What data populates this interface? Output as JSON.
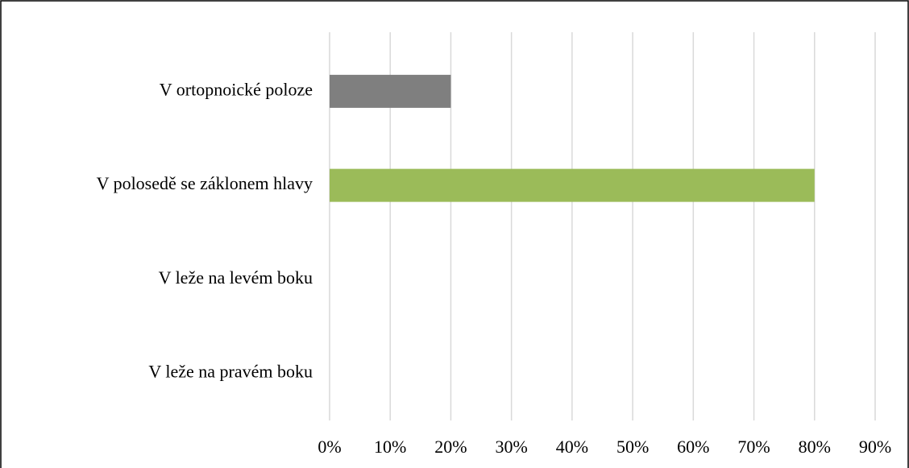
{
  "chart_data": {
    "type": "bar",
    "orientation": "horizontal",
    "categories": [
      "V ortopnoické poloze",
      "V polosedě se záklonem hlavy",
      "V leže na levém boku",
      "V leže na pravém boku"
    ],
    "values": [
      20,
      80,
      0,
      0
    ],
    "colors": [
      "#7f7f7f",
      "#9bbb59",
      "#7f7f7f",
      "#7f7f7f"
    ],
    "xlim": [
      0,
      90
    ],
    "xticks": [
      {
        "value": 0,
        "label": "0%"
      },
      {
        "value": 10,
        "label": "10%"
      },
      {
        "value": 20,
        "label": "20%"
      },
      {
        "value": 30,
        "label": "30%"
      },
      {
        "value": 40,
        "label": "40%"
      },
      {
        "value": 50,
        "label": "50%"
      },
      {
        "value": 60,
        "label": "60%"
      },
      {
        "value": 70,
        "label": "70%"
      },
      {
        "value": 80,
        "label": "80%"
      },
      {
        "value": 90,
        "label": "90%"
      }
    ],
    "grid": true
  }
}
